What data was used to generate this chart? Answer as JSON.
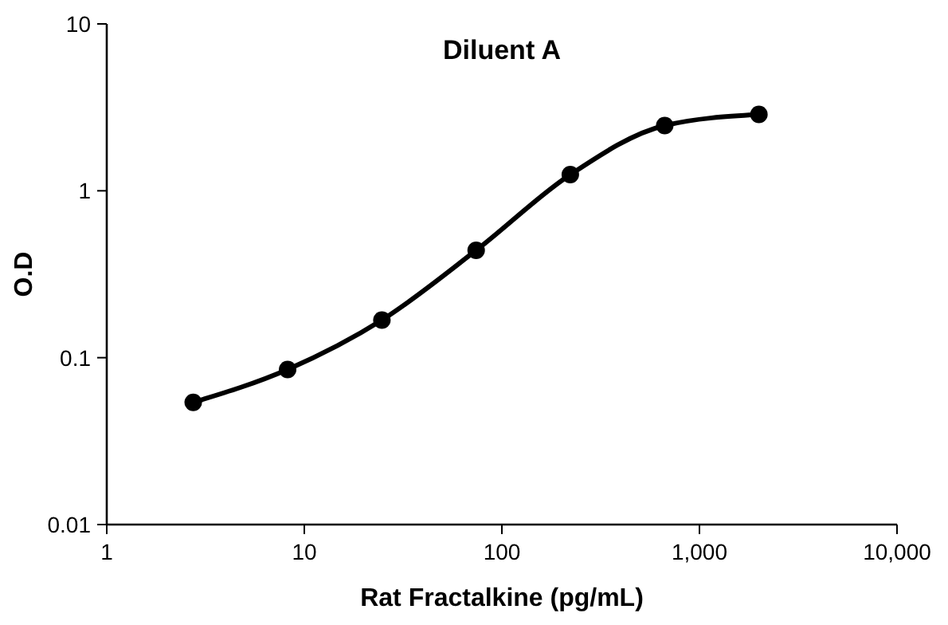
{
  "chart_data": {
    "type": "line",
    "title": "Diluent A",
    "xlabel": "Rat Fractalkine (pg/mL)",
    "ylabel": "O.D",
    "log": "xy",
    "marker": "circle",
    "line_style": "solid",
    "grid": false,
    "x": [
      2.74,
      8.23,
      24.7,
      74.1,
      222,
      667,
      2000
    ],
    "series": [
      {
        "color": "#000000",
        "values": [
          0.054,
          0.085,
          0.168,
          0.44,
          1.25,
          2.46,
          2.87
        ]
      }
    ],
    "xlim": [
      1,
      10000
    ],
    "xticks": [
      1,
      10,
      100,
      {
        "value": 1000,
        "label": "1,000"
      },
      {
        "value": 10000,
        "label": "10,000"
      }
    ],
    "ylim": [
      0.01,
      10
    ],
    "yticks": [
      0.01,
      0.1,
      1,
      10
    ]
  }
}
